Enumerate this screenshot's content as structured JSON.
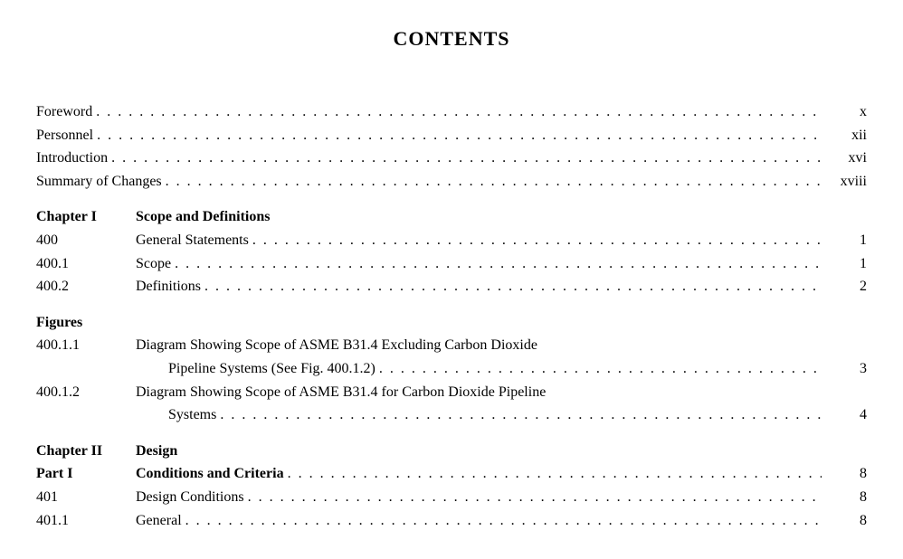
{
  "title": "CONTENTS",
  "dots": ". . . . . . . . . . . . . . . . . . . . . . . . . . . . . . . . . . . . . . . . . . . . . . . . . . . . . . . . . . . . . . . . . . . . . . . . . . . . . . . . . . . . . . . . . . . . . . . . . . . . . . . . . . . . . . . . . . . . . . . . . . . . . . . . . . . . . . . . . . . . . . . . . . . . . . . .",
  "front_matter": [
    {
      "title": "Foreword",
      "page": "x"
    },
    {
      "title": "Personnel",
      "page": "xii"
    },
    {
      "title": "Introduction",
      "page": "xvi"
    },
    {
      "title": "Summary of Changes",
      "page": "xviii"
    }
  ],
  "chapter1": {
    "header": {
      "ref": "Chapter I",
      "title": "Scope and Definitions"
    },
    "rows": [
      {
        "ref": "400",
        "title": "General Statements",
        "page": "1"
      },
      {
        "ref": "400.1",
        "title": "Scope",
        "page": "1"
      },
      {
        "ref": "400.2",
        "title": "Definitions",
        "page": "2"
      }
    ]
  },
  "figures": {
    "header": {
      "ref": "Figures",
      "title": ""
    },
    "rows": [
      {
        "ref": "400.1.1",
        "title_line1": "Diagram Showing Scope of ASME B31.4 Excluding Carbon Dioxide",
        "title_line2": "Pipeline Systems (See Fig. 400.1.2)",
        "page": "3"
      },
      {
        "ref": "400.1.2",
        "title_line1": "Diagram Showing Scope of ASME B31.4 for Carbon Dioxide Pipeline",
        "title_line2": "Systems",
        "page": "4"
      }
    ]
  },
  "chapter2": {
    "header": {
      "ref": "Chapter II",
      "title": "Design"
    },
    "part": {
      "ref": "Part I",
      "title": "Conditions and Criteria",
      "page": "8"
    },
    "rows": [
      {
        "ref": "401",
        "title": "Design Conditions",
        "page": "8"
      },
      {
        "ref": "401.1",
        "title": "General",
        "page": "8"
      }
    ]
  }
}
